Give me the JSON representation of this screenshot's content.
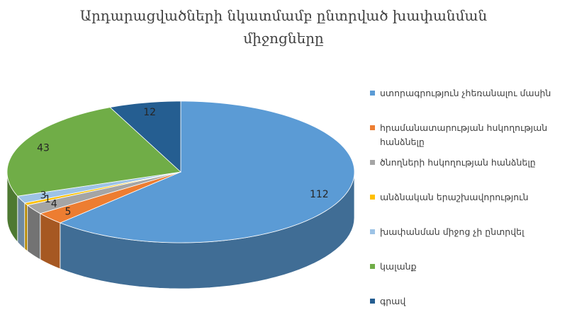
{
  "chart_data": {
    "type": "pie3d",
    "title": "Արդարացվածների նկատմամբ ընտրված խափանման միջոցները",
    "categories": [
      "ստորագրություն չհեռանալու մասին",
      "հրամանատարության հսկողության հանձնելը",
      "ծնողների հսկողության հանձնելը",
      "անձնական երաշխավորություն",
      "խափանման միջոց չի ընտրվել",
      "կալանք",
      "գրավ"
    ],
    "values": [
      112,
      5,
      4,
      1,
      3,
      43,
      12
    ],
    "colors": [
      "#5b9bd5",
      "#ed7d31",
      "#a5a5a5",
      "#ffc000",
      "#9dc3e6",
      "#70ad47",
      "#255e91"
    ],
    "legend": "right"
  }
}
